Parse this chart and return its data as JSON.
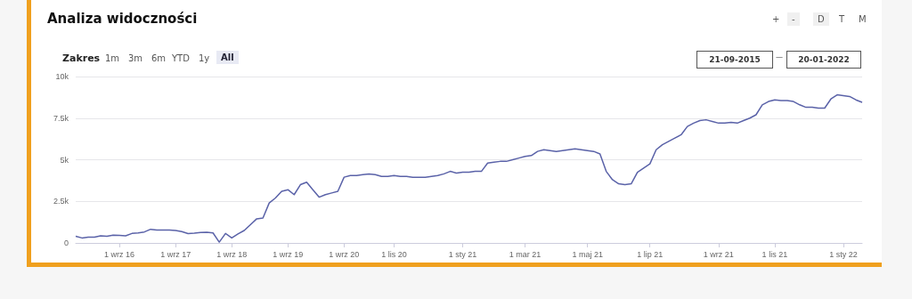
{
  "chart_data": {
    "type": "line",
    "title": "Analiza widoczności",
    "annotations": [
      "Zakres",
      "1m",
      "3m",
      "6m",
      "YTD",
      "1y",
      "All",
      "+",
      "-",
      "D",
      "T",
      "M",
      "21-09-2015",
      "—",
      "20-01-2022"
    ],
    "categories": [
      null,
      null,
      null,
      null,
      null,
      null,
      null,
      "1 wrz 16",
      null,
      null,
      null,
      null,
      null,
      null,
      null,
      null,
      "1 wrz 17",
      null,
      null,
      null,
      null,
      null,
      null,
      null,
      null,
      "1 wrz 18",
      null,
      null,
      null,
      null,
      null,
      null,
      null,
      null,
      "1 wrz 19",
      null,
      null,
      null,
      null,
      null,
      null,
      null,
      null,
      "1 wrz 20",
      null,
      null,
      null,
      null,
      null,
      null,
      null,
      "1 lis 20",
      null,
      null,
      null,
      null,
      null,
      null,
      null,
      null,
      null,
      null,
      "1 sty 21",
      null,
      null,
      null,
      null,
      null,
      null,
      null,
      null,
      null,
      "1 mar 21",
      null,
      null,
      null,
      null,
      null,
      null,
      null,
      null,
      null,
      "1 maj 21",
      null,
      null,
      null,
      null,
      null,
      null,
      null,
      null,
      null,
      "1 lip 21",
      null,
      null,
      null,
      null,
      null,
      null,
      null,
      null,
      null,
      null,
      "1 wrz 21",
      null,
      null,
      null,
      null,
      null,
      null,
      null,
      null,
      "1 lis 21",
      null,
      null,
      null,
      null,
      null,
      null,
      null,
      null,
      null,
      null,
      "1 sty 22",
      null,
      null,
      null
    ],
    "series": [
      {
        "color": "#5a62a8",
        "values": [
          400,
          300,
          350,
          350,
          430,
          400,
          470,
          450,
          430,
          570,
          600,
          660,
          820,
          780,
          770,
          770,
          750,
          680,
          560,
          590,
          630,
          640,
          600,
          50,
          570,
          300,
          540,
          750,
          1100,
          1450,
          1500,
          2400,
          2700,
          3100,
          3200,
          2900,
          3500,
          3650,
          3200,
          2750,
          2900,
          3000,
          3100,
          3950,
          4050,
          4050,
          4100,
          4150,
          4100,
          4000,
          4000,
          4050,
          4000,
          4000,
          3950,
          3950,
          3950,
          4000,
          4050,
          4150,
          4300,
          4200,
          4250,
          4250,
          4300,
          4300,
          4800,
          4850,
          4900,
          4900,
          5000,
          5100,
          5200,
          5250,
          5500,
          5600,
          5550,
          5500,
          5550,
          5600,
          5650,
          5600,
          5550,
          5500,
          5350,
          4300,
          3800,
          3550,
          3500,
          3550,
          4250,
          4500,
          4750,
          5600,
          5900,
          6100,
          6300,
          6500,
          7000,
          7200,
          7350,
          7400,
          7300,
          7200,
          7200,
          7250,
          7200,
          7350,
          7500,
          7700,
          8300,
          8500,
          8600,
          8550,
          8550,
          8500,
          8300,
          8150,
          8150,
          8100,
          8100,
          8650,
          8900,
          8850,
          8800,
          8600,
          8450
        ]
      }
    ],
    "ylim": [
      0,
      10000
    ],
    "yticks": [
      0,
      {
        "value": 2500,
        "label": "2.5k"
      },
      {
        "value": 5000,
        "label": "5k"
      },
      {
        "value": 7500,
        "label": "7.5k"
      },
      {
        "value": 10000,
        "label": "10k"
      }
    ],
    "grid": "y",
    "marker": "none",
    "line_style": "solid"
  }
}
